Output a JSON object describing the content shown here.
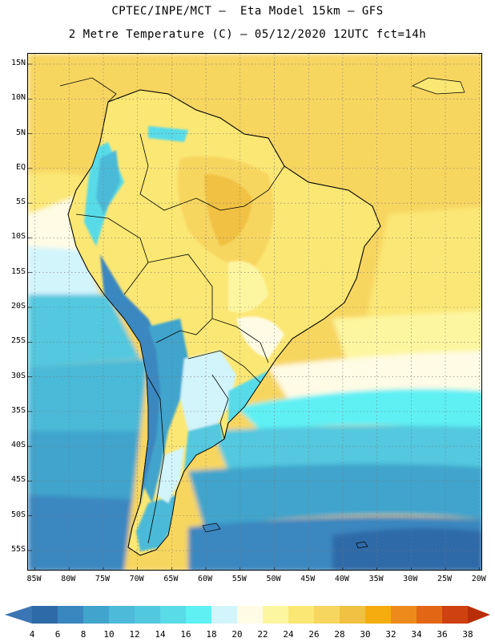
{
  "header": {
    "title_line1": "CPTEC/INPE/MCT –  Eta Model 15km – GFS",
    "title_line2": "2 Metre Temperature (C) – 05/12/2020 12UTC fct=14h"
  },
  "map": {
    "lat_labels": [
      "15N",
      "10N",
      "5N",
      "EQ",
      "5S",
      "10S",
      "15S",
      "20S",
      "25S",
      "30S",
      "35S",
      "40S",
      "45S",
      "50S",
      "55S"
    ],
    "lat_values": [
      15,
      10,
      5,
      0,
      -5,
      -10,
      -15,
      -20,
      -25,
      -30,
      -35,
      -40,
      -45,
      -50,
      -55
    ],
    "lon_labels": [
      "85W",
      "80W",
      "75W",
      "70W",
      "65W",
      "60W",
      "55W",
      "50W",
      "45W",
      "40W",
      "35W",
      "30W",
      "25W",
      "20W"
    ],
    "lon_values": [
      -85,
      -80,
      -75,
      -70,
      -65,
      -60,
      -55,
      -50,
      -45,
      -40,
      -35,
      -30,
      -25,
      -20
    ],
    "lon_range": [
      -86,
      -19.5
    ],
    "lat_range": [
      -58,
      16.5
    ]
  },
  "colorbar": {
    "labels": [
      "4",
      "6",
      "8",
      "10",
      "12",
      "14",
      "16",
      "18",
      "20",
      "22",
      "24",
      "26",
      "28",
      "30",
      "32",
      "34",
      "36",
      "38"
    ],
    "colors": [
      "#3a75b4",
      "#2f6aa8",
      "#3a87c0",
      "#41a4cc",
      "#4cbad8",
      "#52c8df",
      "#59dbe8",
      "#5ff0f4",
      "#d2f4fb",
      "#fffbe4",
      "#fdf6a0",
      "#fbe774",
      "#f7d660",
      "#f0c142",
      "#f4ac0e",
      "#ec8b1c",
      "#e36615",
      "#cf4111",
      "#b82e09"
    ]
  }
}
